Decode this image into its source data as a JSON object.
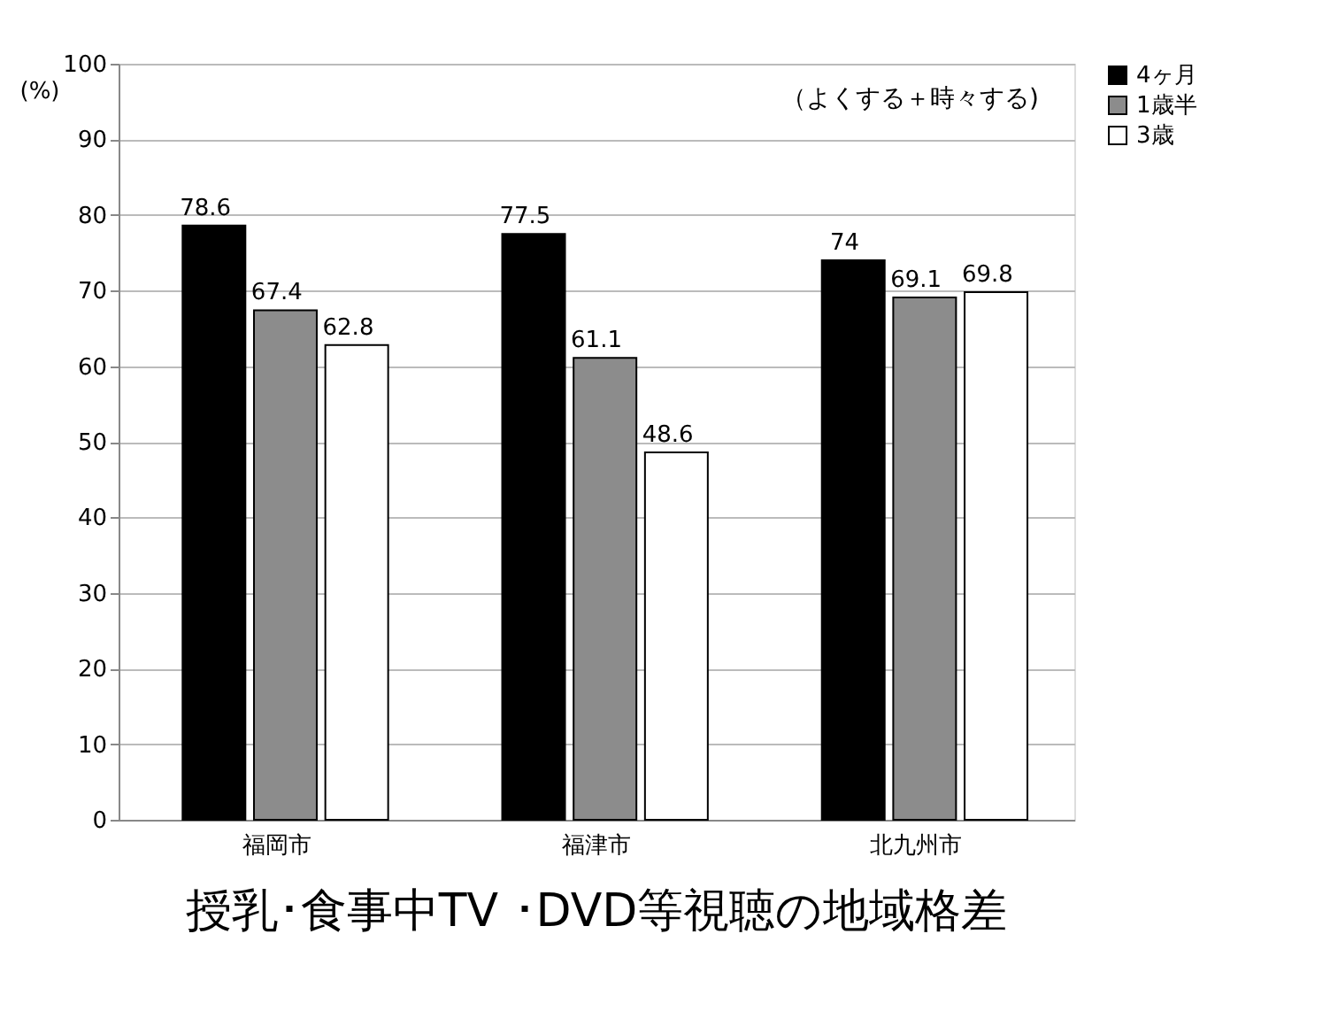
{
  "chart_data": {
    "type": "bar",
    "title": "授乳･食事中TV ･DVD等視聴の地域格差",
    "ylabel": "(%)",
    "annotations": [
      "（よくする＋時々する)"
    ],
    "categories": [
      "福岡市",
      "福津市",
      "北九州市"
    ],
    "series": [
      {
        "name": "4ヶ月",
        "color": "#000000",
        "values": [
          78.6,
          77.5,
          74
        ]
      },
      {
        "name": "1歳半",
        "color": "#8c8c8c",
        "values": [
          67.4,
          61.1,
          69.1
        ]
      },
      {
        "name": "3歳",
        "color": "#ffffff",
        "values": [
          62.8,
          48.6,
          69.8
        ]
      }
    ],
    "ylim": [
      0,
      100
    ],
    "yticks": [
      0,
      10,
      20,
      30,
      40,
      50,
      60,
      70,
      80,
      90,
      100
    ],
    "grid": "y",
    "legend": "right",
    "data_labels": true
  }
}
